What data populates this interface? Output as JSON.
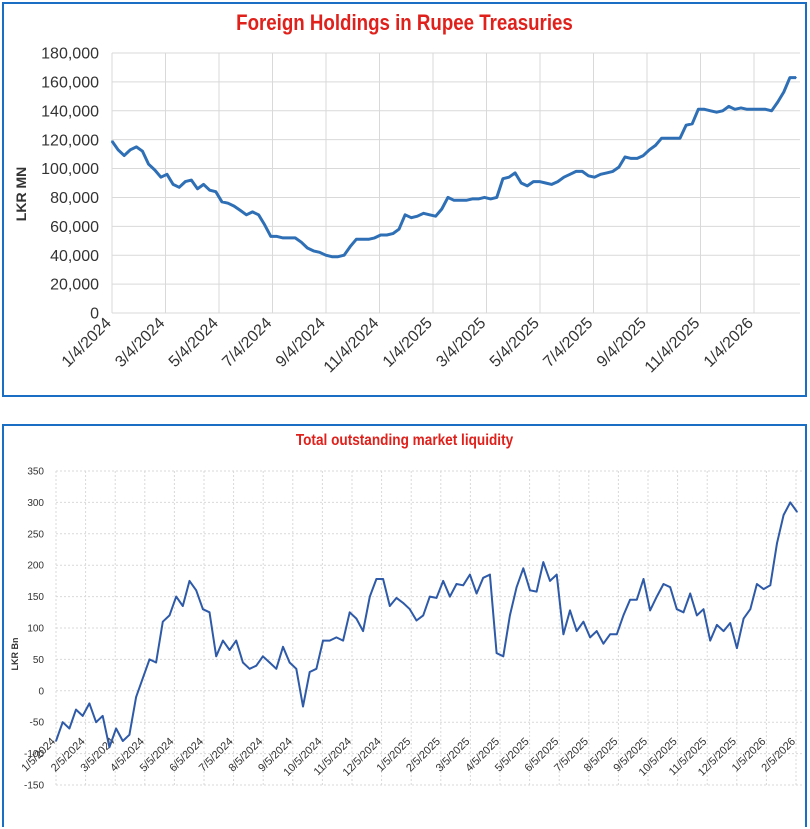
{
  "charts": [
    {
      "type": "line",
      "title": "Foreign Holdings in Rupee Treasuries",
      "ylabel": "LKR MN",
      "xlabel": "",
      "ylim": [
        0,
        180000
      ],
      "yticks": [
        "0",
        "20,000",
        "40,000",
        "60,000",
        "80,000",
        "100,000",
        "120,000",
        "140,000",
        "160,000",
        "180,000"
      ],
      "ytick_values": [
        0,
        20000,
        40000,
        60000,
        80000,
        100000,
        120000,
        140000,
        160000,
        180000
      ],
      "xticks": [
        "1/4/2024",
        "3/4/2024",
        "5/4/2024",
        "7/4/2024",
        "9/4/2024",
        "11/4/2024",
        "1/4/2025",
        "3/4/2025",
        "5/4/2025",
        "7/4/2025",
        "9/4/2025",
        "11/4/2025",
        "1/4/2026"
      ],
      "grid": true,
      "color": "#2e6fb5",
      "values": [
        119000,
        113000,
        109000,
        113000,
        115000,
        112000,
        103000,
        99000,
        94000,
        96000,
        89000,
        87000,
        91000,
        92000,
        86000,
        89000,
        85000,
        84000,
        77000,
        76000,
        74000,
        71000,
        68000,
        70000,
        68000,
        61000,
        53000,
        53000,
        52000,
        52000,
        52000,
        49000,
        45000,
        43000,
        42000,
        40000,
        39000,
        39000,
        40000,
        46000,
        51000,
        51000,
        51000,
        52000,
        54000,
        54000,
        55000,
        58000,
        68000,
        66000,
        67000,
        69000,
        68000,
        67000,
        72000,
        80000,
        78000,
        78000,
        78000,
        79000,
        79000,
        80000,
        79000,
        80000,
        93000,
        94000,
        97000,
        90000,
        88000,
        91000,
        91000,
        90000,
        89000,
        91000,
        94000,
        96000,
        98000,
        98000,
        95000,
        94000,
        96000,
        97000,
        98000,
        101000,
        108000,
        107000,
        107000,
        109000,
        113000,
        116000,
        121000,
        121000,
        121000,
        121000,
        130000,
        131000,
        141000,
        141000,
        140000,
        139000,
        140000,
        143000,
        141000,
        142000,
        141000,
        141000,
        141000,
        141000,
        140000,
        146000,
        153000,
        163000,
        163000
      ]
    },
    {
      "type": "line",
      "title": "Total outstanding market liquidity",
      "ylabel": "LKR Bn",
      "xlabel": "",
      "ylim": [
        -150,
        350
      ],
      "yticks": [
        "350",
        "300",
        "250",
        "200",
        "150",
        "100",
        "50",
        "0",
        "-50",
        "-100",
        "-150"
      ],
      "ytick_values": [
        350,
        300,
        250,
        200,
        150,
        100,
        50,
        0,
        -50,
        -100,
        -150
      ],
      "xticks": [
        "1/5/2024",
        "2/5/2024",
        "3/5/2024",
        "4/5/2024",
        "5/5/2024",
        "6/5/2024",
        "7/5/2024",
        "8/5/2024",
        "9/5/2024",
        "10/5/2024",
        "11/5/2024",
        "12/5/2024",
        "1/5/2025",
        "2/5/2025",
        "3/5/2025",
        "4/5/2025",
        "5/5/2025",
        "6/5/2025",
        "7/5/2025",
        "8/5/2025",
        "9/5/2025",
        "10/5/2025",
        "11/5/2025",
        "12/5/2025",
        "1/5/2026",
        "2/5/2026"
      ],
      "grid": true,
      "color": "#2e5aa8",
      "values": [
        -80,
        -50,
        -60,
        -30,
        -40,
        -20,
        -50,
        -40,
        -90,
        -60,
        -80,
        -70,
        -10,
        20,
        50,
        45,
        110,
        120,
        150,
        135,
        175,
        160,
        130,
        125,
        55,
        80,
        65,
        80,
        45,
        35,
        40,
        55,
        45,
        35,
        70,
        45,
        35,
        -25,
        30,
        35,
        80,
        80,
        85,
        80,
        125,
        115,
        95,
        150,
        178,
        178,
        135,
        148,
        140,
        130,
        112,
        120,
        150,
        148,
        175,
        150,
        170,
        168,
        185,
        155,
        180,
        185,
        60,
        55,
        120,
        165,
        195,
        160,
        158,
        205,
        175,
        185,
        90,
        128,
        95,
        110,
        85,
        95,
        75,
        90,
        90,
        120,
        145,
        145,
        178,
        128,
        150,
        170,
        165,
        130,
        125,
        155,
        120,
        130,
        80,
        105,
        95,
        108,
        68,
        115,
        130,
        170,
        162,
        168,
        235,
        280,
        300,
        285
      ]
    }
  ]
}
